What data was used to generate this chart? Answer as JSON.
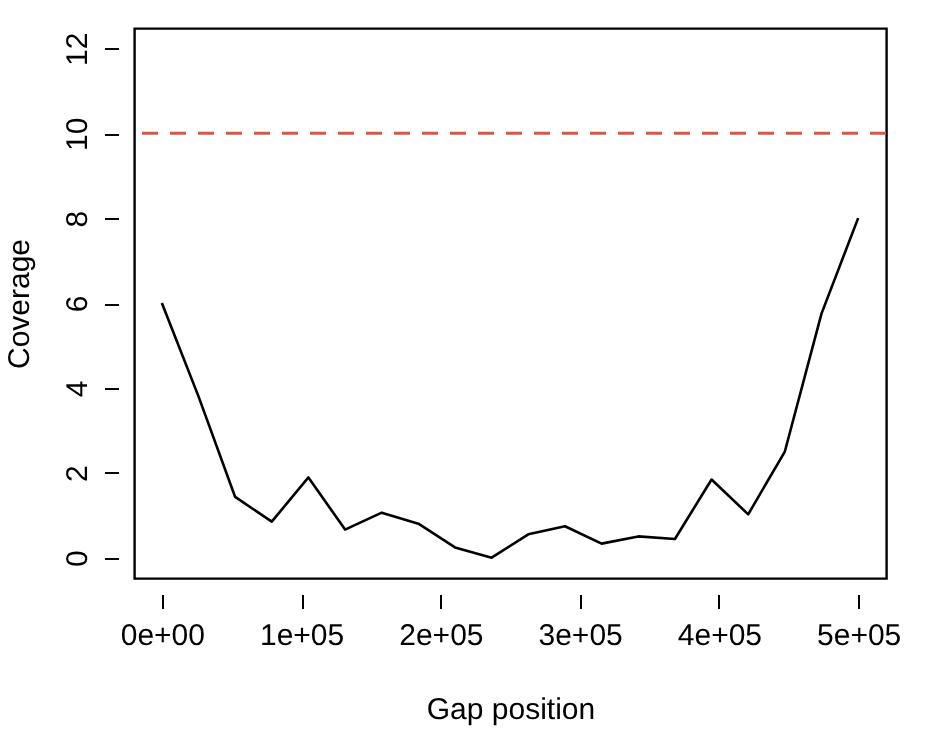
{
  "chart_data": {
    "type": "line",
    "xlabel": "Gap position",
    "ylabel": "Coverage",
    "x": [
      0,
      26316,
      52632,
      78947,
      105263,
      131579,
      157895,
      184211,
      210526,
      236842,
      263158,
      289474,
      315789,
      342105,
      368421,
      394737,
      421053,
      447368,
      473684,
      500000
    ],
    "series": [
      {
        "color": "#000000",
        "values": [
          6,
          3.8,
          1.43,
          0.85,
          1.89,
          0.66,
          1.06,
          0.8,
          0.24,
          0,
          0.55,
          0.74,
          0.33,
          0.5,
          0.44,
          1.84,
          1.02,
          2.5,
          5.75,
          8
        ]
      }
    ],
    "xlim": [
      -20000,
      520000
    ],
    "ylim": [
      -0.48,
      12.48
    ],
    "xticks": [
      {
        "value": 0,
        "label": "0e+00"
      },
      {
        "value": 100000,
        "label": "1e+05"
      },
      {
        "value": 200000,
        "label": "2e+05"
      },
      {
        "value": 300000,
        "label": "3e+05"
      },
      {
        "value": 400000,
        "label": "4e+05"
      },
      {
        "value": 500000,
        "label": "5e+05"
      }
    ],
    "yticks": [
      0,
      2,
      4,
      6,
      8,
      10,
      12
    ],
    "ref_lines": [
      {
        "axis": "y",
        "value": 10,
        "color": "#df5345",
        "line_style": "dashed"
      }
    ],
    "grid": false,
    "marker": "none",
    "line_style": "solid"
  }
}
